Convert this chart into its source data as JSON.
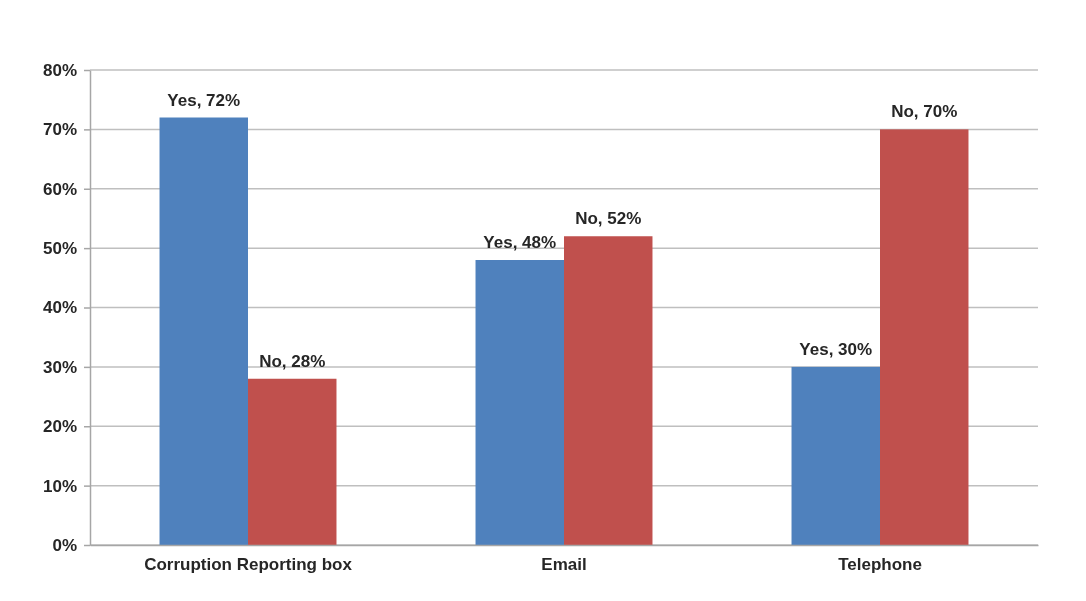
{
  "chart_data": {
    "type": "bar",
    "categories": [
      "Corruption Reporting box",
      "Email",
      "Telephone"
    ],
    "series": [
      {
        "color": "#4f81bd",
        "values": [
          72,
          48,
          30
        ],
        "value_labels": [
          "Yes, 72%",
          "Yes, 48%",
          "Yes, 30%"
        ]
      },
      {
        "color": "#c0504d",
        "values": [
          28,
          52,
          70
        ],
        "value_labels": [
          "No, 28%",
          "No, 52%",
          "No, 70%"
        ]
      }
    ],
    "ylim": [
      0,
      80
    ],
    "yticks": [
      {
        "value": 0,
        "label": "0%"
      },
      {
        "value": 10,
        "label": "10%"
      },
      {
        "value": 20,
        "label": "20%"
      },
      {
        "value": 30,
        "label": "30%"
      },
      {
        "value": 40,
        "label": "40%"
      },
      {
        "value": 50,
        "label": "50%"
      },
      {
        "value": 60,
        "label": "60%"
      },
      {
        "value": 70,
        "label": "70%"
      },
      {
        "value": 80,
        "label": "80%"
      }
    ],
    "grid": "y"
  }
}
